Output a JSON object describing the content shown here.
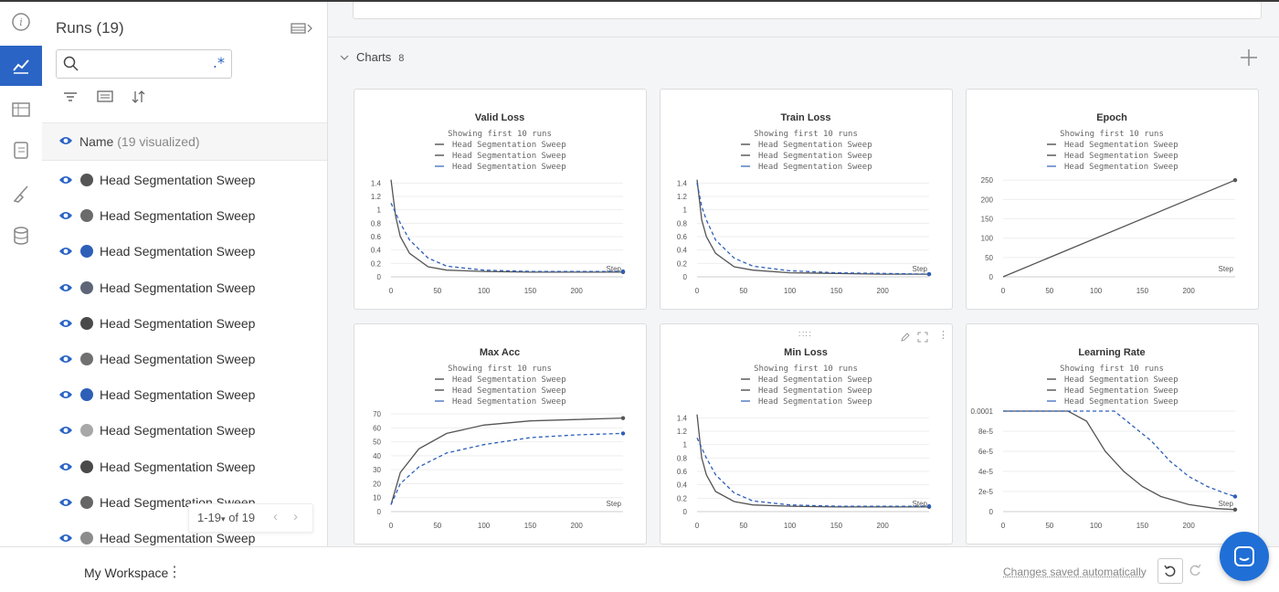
{
  "runs_panel": {
    "title": "Runs (19)",
    "search_placeholder": "",
    "header": {
      "label": "Name",
      "count": "(19 visualized)"
    },
    "rows": [
      {
        "name": "Head Segmentation Sweep",
        "color": "#555555"
      },
      {
        "name": "Head Segmentation Sweep",
        "color": "#6b6b6b"
      },
      {
        "name": "Head Segmentation Sweep",
        "color": "#2d5fb8"
      },
      {
        "name": "Head Segmentation Sweep",
        "color": "#5d6577"
      },
      {
        "name": "Head Segmentation Sweep",
        "color": "#4a4a4a"
      },
      {
        "name": "Head Segmentation Sweep",
        "color": "#707070"
      },
      {
        "name": "Head Segmentation Sweep",
        "color": "#2d5fb8"
      },
      {
        "name": "Head Segmentation Sweep",
        "color": "#a8a8a8"
      },
      {
        "name": "Head Segmentation Sweep",
        "color": "#4a4a4a"
      },
      {
        "name": "Head Segmentation Sweep",
        "color": "#666666"
      },
      {
        "name": "Head Segmentation Sweep",
        "color": "#8c8c8c"
      }
    ],
    "pager": {
      "range": "1-19",
      "of": "of 19"
    }
  },
  "charts_section": {
    "title": "Charts",
    "count": "8"
  },
  "legend": {
    "showing": "Showing first 10 runs",
    "entries": [
      "Head Segmentation Sweep",
      "Head Segmentation Sweep",
      "Head Segmentation Sweep"
    ],
    "colors": [
      "#333333",
      "#333333",
      "#2d5fb8"
    ]
  },
  "chart_data": [
    {
      "type": "line",
      "title": "Valid Loss",
      "xlabel": "Step",
      "xlim": [
        0,
        250
      ],
      "ylim": [
        0,
        1.5
      ],
      "xticks": [
        "0",
        "50",
        "100",
        "150",
        "200"
      ],
      "yticks": [
        "0",
        "0.2",
        "0.4",
        "0.6",
        "0.8",
        "1",
        "1.2",
        "1.4"
      ],
      "series": [
        {
          "x": [
            0,
            5,
            10,
            20,
            40,
            60,
            100,
            150,
            200,
            250
          ],
          "y": [
            1.45,
            0.9,
            0.6,
            0.35,
            0.15,
            0.1,
            0.08,
            0.07,
            0.07,
            0.07
          ]
        },
        {
          "x": [
            0,
            5,
            10,
            20,
            40,
            60,
            100,
            150,
            200,
            250
          ],
          "y": [
            1.1,
            0.95,
            0.8,
            0.55,
            0.28,
            0.16,
            0.1,
            0.08,
            0.08,
            0.08
          ]
        }
      ]
    },
    {
      "type": "line",
      "title": "Train Loss",
      "xlabel": "Step",
      "xlim": [
        0,
        250
      ],
      "ylim": [
        0,
        1.5
      ],
      "xticks": [
        "0",
        "50",
        "100",
        "150",
        "200"
      ],
      "yticks": [
        "0",
        "0.2",
        "0.4",
        "0.6",
        "0.8",
        "1",
        "1.2",
        "1.4"
      ],
      "series": [
        {
          "x": [
            0,
            5,
            10,
            20,
            40,
            60,
            100,
            150,
            200,
            250
          ],
          "y": [
            1.45,
            0.85,
            0.6,
            0.35,
            0.15,
            0.1,
            0.06,
            0.05,
            0.04,
            0.04
          ]
        },
        {
          "x": [
            0,
            5,
            10,
            20,
            40,
            60,
            100,
            150,
            200,
            250
          ],
          "y": [
            1.4,
            1.05,
            0.85,
            0.55,
            0.28,
            0.16,
            0.09,
            0.06,
            0.05,
            0.04
          ]
        }
      ]
    },
    {
      "type": "line",
      "title": "Epoch",
      "xlabel": "Step",
      "xlim": [
        0,
        250
      ],
      "ylim": [
        0,
        260
      ],
      "xticks": [
        "0",
        "50",
        "100",
        "150",
        "200"
      ],
      "yticks": [
        "0",
        "50",
        "100",
        "150",
        "200",
        "250"
      ],
      "series": [
        {
          "x": [
            0,
            250
          ],
          "y": [
            0,
            250
          ]
        }
      ]
    },
    {
      "type": "line",
      "title": "Max Acc",
      "xlabel": "Step",
      "xlim": [
        0,
        250
      ],
      "ylim": [
        0,
        72
      ],
      "xticks": [
        "0",
        "50",
        "100",
        "150",
        "200"
      ],
      "yticks": [
        "0",
        "10",
        "20",
        "30",
        "40",
        "50",
        "60",
        "70"
      ],
      "series": [
        {
          "x": [
            0,
            10,
            30,
            60,
            100,
            150,
            200,
            250
          ],
          "y": [
            5,
            28,
            45,
            56,
            62,
            65,
            66,
            67
          ]
        },
        {
          "x": [
            0,
            10,
            30,
            60,
            100,
            150,
            200,
            250
          ],
          "y": [
            5,
            20,
            32,
            42,
            48,
            53,
            55,
            56
          ]
        }
      ]
    },
    {
      "type": "line",
      "title": "Min Loss",
      "xlabel": "Step",
      "xlim": [
        0,
        250
      ],
      "ylim": [
        0,
        1.5
      ],
      "xticks": [
        "0",
        "50",
        "100",
        "150",
        "200"
      ],
      "yticks": [
        "0",
        "0.2",
        "0.4",
        "0.6",
        "0.8",
        "1",
        "1.2",
        "1.4"
      ],
      "series": [
        {
          "x": [
            0,
            5,
            10,
            20,
            40,
            60,
            100,
            150,
            200,
            250
          ],
          "y": [
            1.45,
            0.8,
            0.55,
            0.3,
            0.15,
            0.1,
            0.08,
            0.07,
            0.07,
            0.07
          ]
        },
        {
          "x": [
            0,
            5,
            10,
            20,
            40,
            60,
            100,
            150,
            200,
            250
          ],
          "y": [
            1.1,
            0.95,
            0.8,
            0.55,
            0.28,
            0.16,
            0.1,
            0.08,
            0.08,
            0.08
          ]
        }
      ]
    },
    {
      "type": "line",
      "title": "Learning Rate",
      "xlabel": "Step",
      "xlim": [
        0,
        250
      ],
      "ylim": [
        0,
        0.0001
      ],
      "xticks": [
        "0",
        "50",
        "100",
        "150",
        "200"
      ],
      "yticks": [
        "0",
        "2e-5",
        "4e-5",
        "6e-5",
        "8e-5",
        "0.0001"
      ],
      "series": [
        {
          "x": [
            0,
            70,
            90,
            110,
            130,
            150,
            170,
            200,
            230,
            250
          ],
          "y": [
            0.0001,
            0.0001,
            9e-05,
            6e-05,
            4e-05,
            2.5e-05,
            1.5e-05,
            7e-06,
            3e-06,
            2e-06
          ]
        },
        {
          "x": [
            0,
            120,
            140,
            160,
            180,
            200,
            220,
            240,
            250
          ],
          "y": [
            0.0001,
            0.0001,
            8.5e-05,
            7e-05,
            5e-05,
            3.5e-05,
            2.5e-05,
            1.8e-05,
            1.5e-05
          ]
        }
      ]
    }
  ],
  "bottom": {
    "workspace": "My Workspace",
    "saved": "Changes saved automatically"
  }
}
